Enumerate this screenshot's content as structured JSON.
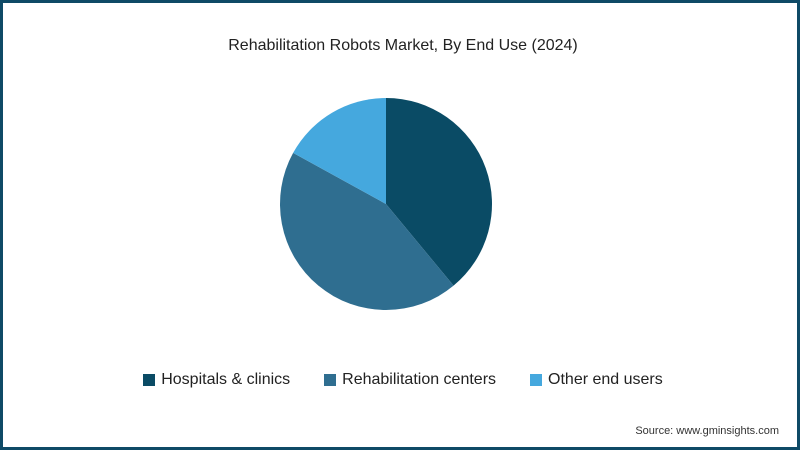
{
  "chart_data": {
    "type": "pie",
    "title": "Rehabilitation Robots Market, By End Use (2024)",
    "categories": [
      "Hospitals & clinics",
      "Rehabilitation centers",
      "Other end users"
    ],
    "values": [
      39,
      44,
      17
    ],
    "unit": "%",
    "colors": [
      "#0a4b65",
      "#2f6e90",
      "#45a8de"
    ],
    "legend_position": "bottom",
    "start_angle": "12 o'clock, clockwise"
  },
  "source": "Source: www.gminsights.com",
  "border_color": "#0e4a66"
}
